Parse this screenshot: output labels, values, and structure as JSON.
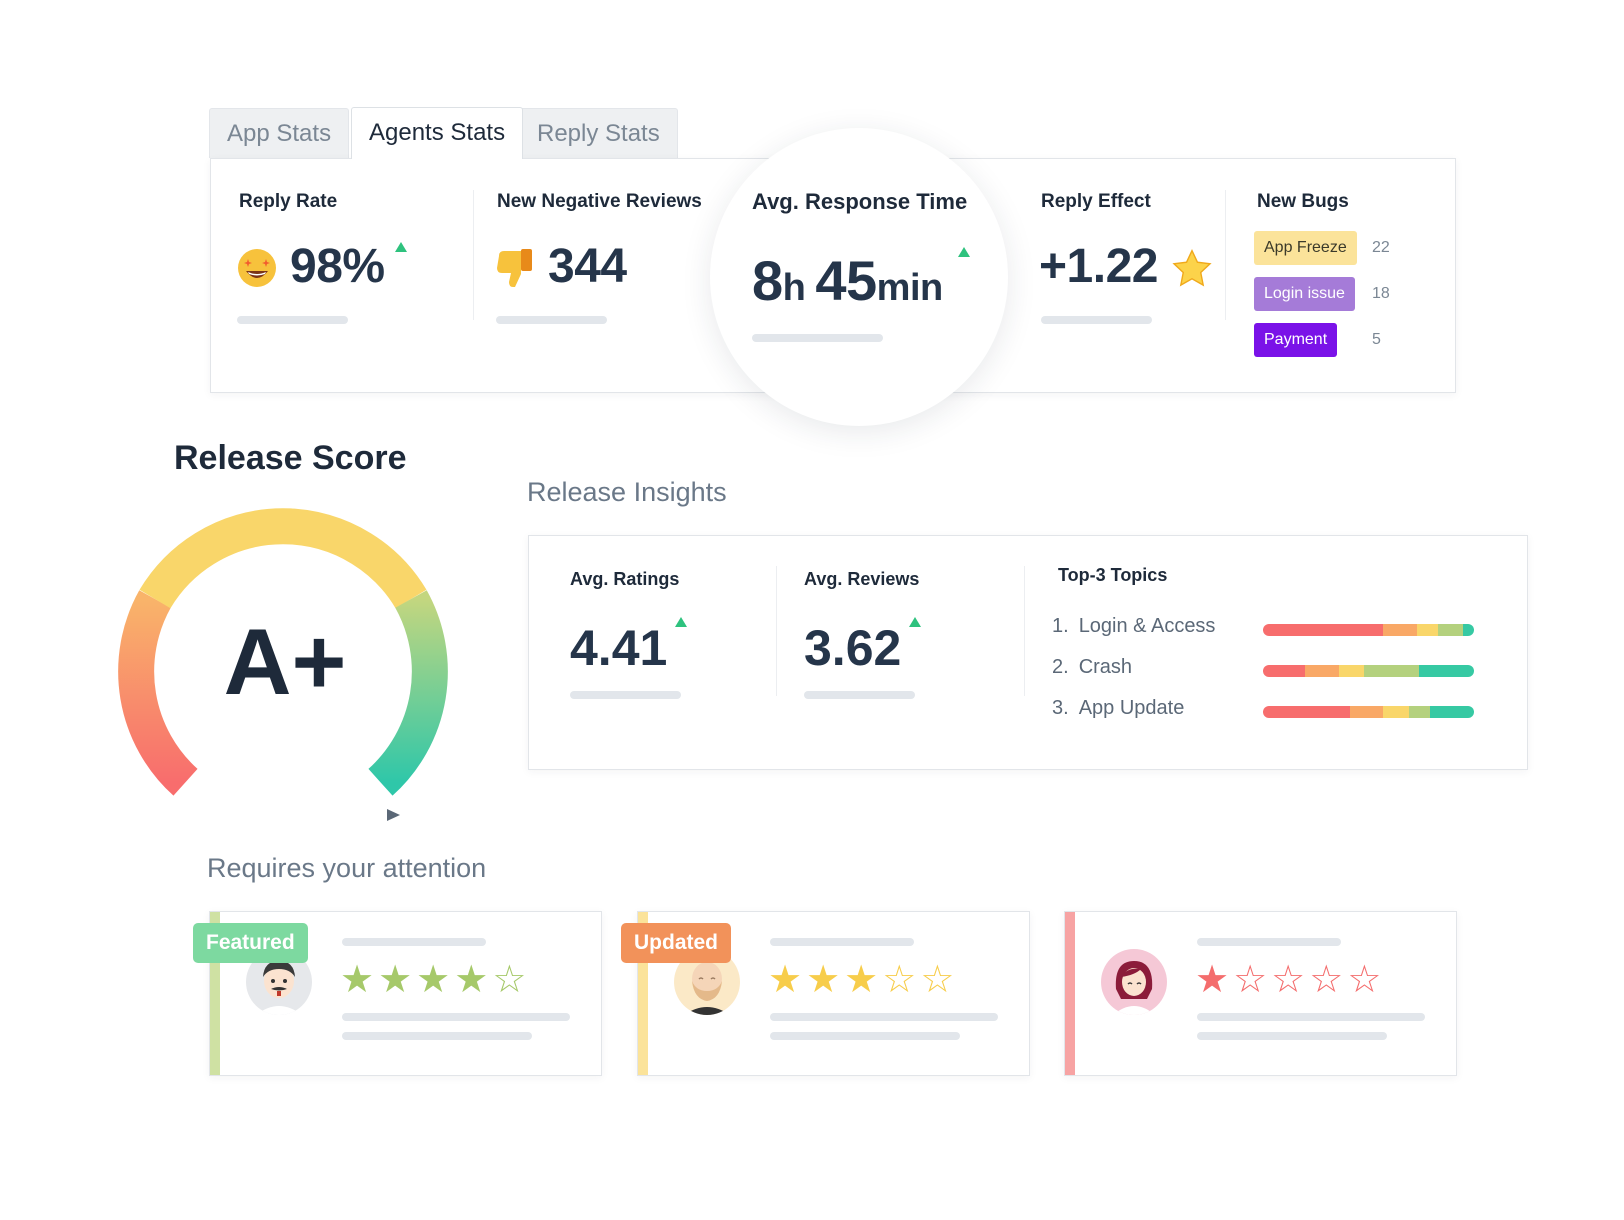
{
  "tabs": [
    {
      "label": "App Stats",
      "active": false
    },
    {
      "label": "Agents Stats",
      "active": true
    },
    {
      "label": "Reply Stats",
      "active": false
    }
  ],
  "stats": {
    "reply_rate": {
      "label": "Reply Rate",
      "value": "98%",
      "icon": "star-struck-emoji",
      "trend": "up"
    },
    "negative_reviews": {
      "label": "New Negative Reviews",
      "value": "344",
      "icon": "thumbs-down-emoji"
    },
    "response_time": {
      "label": "Avg. Response Time",
      "hours": "8",
      "hours_unit": "h",
      "minutes": "45",
      "minutes_unit": "min",
      "trend": "up"
    },
    "reply_effect": {
      "label": "Reply Effect",
      "value": "+1.22",
      "icon": "star-icon"
    },
    "new_bugs": {
      "label": "New Bugs",
      "items": [
        {
          "name": "App Freeze",
          "count": "22",
          "bg": "#fbe39a",
          "fg": "#3b3a2a"
        },
        {
          "name": "Login issue",
          "count": "18",
          "bg": "#a57bd8",
          "fg": "#ffffff"
        },
        {
          "name": "Payment",
          "count": "5",
          "bg": "#7a12e8",
          "fg": "#ffffff"
        }
      ]
    }
  },
  "release_score": {
    "title": "Release Score",
    "grade": "A+"
  },
  "release_insights": {
    "title": "Release Insights",
    "avg_ratings": {
      "label": "Avg. Ratings",
      "value": "4.41",
      "trend": "up"
    },
    "avg_reviews": {
      "label": "Avg. Reviews",
      "value": "3.62",
      "trend": "up"
    },
    "topics": {
      "label": "Top-3 Topics",
      "items": [
        {
          "rank": "1.",
          "name": "Login & Access",
          "segments": [
            0.57,
            0.16,
            0.1,
            0.12,
            0.05
          ]
        },
        {
          "rank": "2.",
          "name": "Crash",
          "segments": [
            0.2,
            0.16,
            0.12,
            0.26,
            0.26
          ]
        },
        {
          "rank": "3.",
          "name": "App Update",
          "segments": [
            0.41,
            0.16,
            0.12,
            0.1,
            0.21
          ]
        }
      ]
    }
  },
  "attention": {
    "title": "Requires your attention",
    "cards": [
      {
        "badge": "Featured",
        "badge_color": "#7dd9a0",
        "stripe": "#cfe1a3",
        "rating": 4,
        "star_color": "#a6c96a",
        "avatar": "man-mustache-avatar"
      },
      {
        "badge": "Updated",
        "badge_color": "#f2925a",
        "stripe": "#fbe39a",
        "rating": 3,
        "star_color": "#f7cd4b",
        "avatar": "bald-beard-avatar"
      },
      {
        "badge": "",
        "badge_color": "",
        "stripe": "#f7a3a3",
        "rating": 1,
        "star_color": "#f46d6d",
        "avatar": "woman-avatar"
      }
    ]
  },
  "colors": {
    "segment_colors": [
      "#f76d6d",
      "#f9a866",
      "#f9d66a",
      "#b4d17e",
      "#36c9a3"
    ],
    "trend_up": "#2ec27e"
  }
}
